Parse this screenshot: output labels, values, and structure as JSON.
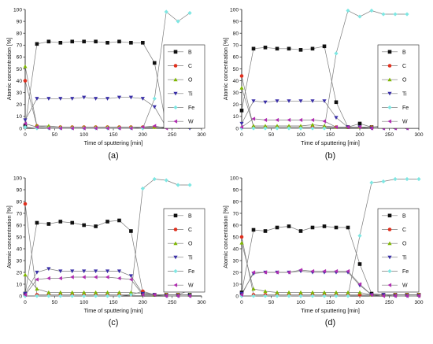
{
  "figure": {
    "colors": {
      "B": "#111111",
      "C": "#e0301e",
      "O": "#7fb800",
      "Ti": "#3a2fa8",
      "Fe": "#7fe7e3",
      "W": "#b02db0",
      "line": "#7a7a7a"
    },
    "markers": {
      "B": "square",
      "C": "circle",
      "O": "triangle-up",
      "Ti": "triangle-down",
      "Fe": "diamond",
      "W": "triangle-left"
    }
  },
  "chart_data": [
    {
      "type": "line",
      "panel_label": "(a)",
      "xlabel": "Time of sputtering [min]",
      "ylabel": "Atomic concentration [%]",
      "xlim": [
        0,
        300
      ],
      "ylim": [
        0,
        100
      ],
      "xticks": [
        "0",
        "50",
        "100",
        "150",
        "200",
        "250",
        "300"
      ],
      "yticks": [
        "0",
        "10",
        "20",
        "30",
        "40",
        "50",
        "60",
        "70",
        "80",
        "90",
        "100"
      ],
      "legend_position": "right",
      "series": [
        {
          "name": "B",
          "x": [
            0,
            20,
            40,
            60,
            80,
            100,
            120,
            140,
            160,
            180,
            200,
            220,
            240,
            260,
            280
          ],
          "values": [
            2,
            71,
            73,
            72,
            73,
            73,
            73,
            72,
            73,
            72,
            72,
            55,
            2,
            6,
            1
          ]
        },
        {
          "name": "C",
          "x": [
            0,
            20,
            40,
            60,
            80,
            100,
            120,
            140,
            160,
            180,
            200,
            220,
            240,
            260,
            280
          ],
          "values": [
            40,
            2,
            1,
            1,
            1,
            1,
            1,
            1,
            1,
            1,
            1,
            1,
            1,
            3,
            1
          ]
        },
        {
          "name": "O",
          "x": [
            0,
            20,
            40,
            60,
            80,
            100,
            120,
            140,
            160,
            180,
            200,
            220,
            240,
            260,
            280
          ],
          "values": [
            52,
            2,
            2,
            1,
            1,
            1,
            1,
            1,
            1,
            1,
            1,
            1,
            1,
            1,
            1
          ]
        },
        {
          "name": "Ti",
          "x": [
            0,
            20,
            40,
            60,
            80,
            100,
            120,
            140,
            160,
            180,
            200,
            220,
            240,
            260,
            280
          ],
          "values": [
            7,
            25,
            25,
            25,
            25,
            26,
            25,
            25,
            26,
            26,
            25,
            18,
            1,
            1,
            0
          ]
        },
        {
          "name": "Fe",
          "x": [
            0,
            20,
            40,
            60,
            80,
            100,
            120,
            140,
            160,
            180,
            200,
            220,
            240,
            260,
            280
          ],
          "values": [
            1,
            0,
            0,
            0,
            0,
            0,
            0,
            0,
            0,
            0,
            0,
            25,
            98,
            90,
            97
          ]
        },
        {
          "name": "W",
          "x": [
            0,
            20,
            40,
            60,
            80,
            100,
            120,
            140,
            160,
            180,
            200,
            220,
            240,
            260,
            280
          ],
          "values": [
            4,
            1,
            0,
            0,
            0,
            0,
            0,
            0,
            0,
            0,
            1,
            2,
            0,
            1,
            2
          ]
        }
      ]
    },
    {
      "type": "line",
      "panel_label": "(b)",
      "xlabel": "Time of sputtering [min]",
      "ylabel": "Atomic concentration [%]",
      "xlim": [
        0,
        300
      ],
      "ylim": [
        0,
        100
      ],
      "xticks": [
        "0",
        "50",
        "100",
        "150",
        "200",
        "250",
        "300"
      ],
      "yticks": [
        "0",
        "10",
        "20",
        "30",
        "40",
        "50",
        "60",
        "70",
        "80",
        "90",
        "100"
      ],
      "legend_position": "right",
      "series": [
        {
          "name": "B",
          "x": [
            0,
            20,
            40,
            60,
            80,
            100,
            120,
            140,
            160,
            180,
            200,
            220,
            240,
            260,
            280
          ],
          "values": [
            15,
            67,
            68,
            67,
            67,
            66,
            67,
            69,
            22,
            1,
            4,
            1,
            2,
            1,
            1
          ]
        },
        {
          "name": "C",
          "x": [
            0,
            20,
            40,
            60,
            80,
            100,
            120,
            140,
            160,
            180,
            200,
            220,
            240,
            260,
            280
          ],
          "values": [
            44,
            1,
            1,
            1,
            1,
            1,
            1,
            1,
            1,
            1,
            1,
            1,
            1,
            1,
            4
          ]
        },
        {
          "name": "O",
          "x": [
            0,
            20,
            40,
            60,
            80,
            100,
            120,
            140,
            160,
            180,
            200,
            220,
            240,
            260,
            280
          ],
          "values": [
            34,
            2,
            2,
            2,
            2,
            2,
            3,
            2,
            1,
            1,
            1,
            1,
            1,
            1,
            1
          ]
        },
        {
          "name": "Ti",
          "x": [
            0,
            20,
            40,
            60,
            80,
            100,
            120,
            140,
            160,
            180,
            200,
            220,
            240,
            260,
            280
          ],
          "values": [
            4,
            23,
            22,
            23,
            23,
            23,
            23,
            23,
            9,
            1,
            1,
            0,
            0,
            0,
            0
          ]
        },
        {
          "name": "Fe",
          "x": [
            0,
            20,
            40,
            60,
            80,
            100,
            120,
            140,
            160,
            180,
            200,
            220,
            240,
            260,
            280
          ],
          "values": [
            0,
            0,
            0,
            0,
            0,
            0,
            0,
            0,
            63,
            99,
            94,
            99,
            96,
            96,
            96
          ]
        },
        {
          "name": "W",
          "x": [
            0,
            20,
            40,
            60,
            80,
            100,
            120,
            140,
            160,
            180,
            200,
            220,
            240,
            260,
            280
          ],
          "values": [
            1,
            8,
            7,
            7,
            7,
            7,
            7,
            6,
            1,
            1,
            1,
            0,
            0,
            0,
            0
          ]
        }
      ]
    },
    {
      "type": "line",
      "panel_label": "(c)",
      "xlabel": "Time of sputtering [min]",
      "ylabel": "Atomic concentration [%]",
      "xlim": [
        0,
        300
      ],
      "ylim": [
        0,
        100
      ],
      "xticks": [
        "0",
        "50",
        "100",
        "150",
        "200",
        "250",
        "300"
      ],
      "yticks": [
        "0",
        "10",
        "20",
        "30",
        "40",
        "50",
        "60",
        "70",
        "80",
        "90",
        "100"
      ],
      "legend_position": "right",
      "series": [
        {
          "name": "B",
          "x": [
            0,
            20,
            40,
            60,
            80,
            100,
            120,
            140,
            160,
            180,
            200,
            220,
            240,
            260,
            280
          ],
          "values": [
            2,
            62,
            61,
            63,
            62,
            60,
            59,
            63,
            64,
            55,
            3,
            1,
            1,
            1,
            1
          ]
        },
        {
          "name": "C",
          "x": [
            0,
            20,
            40,
            60,
            80,
            100,
            120,
            140,
            160,
            180,
            200,
            220,
            240,
            260,
            280
          ],
          "values": [
            78,
            1,
            1,
            1,
            1,
            1,
            1,
            1,
            1,
            1,
            4,
            1,
            1,
            1,
            5
          ]
        },
        {
          "name": "O",
          "x": [
            0,
            20,
            40,
            60,
            80,
            100,
            120,
            140,
            160,
            180,
            200,
            220,
            240,
            260,
            280
          ],
          "values": [
            18,
            6,
            3,
            3,
            3,
            3,
            3,
            3,
            3,
            3,
            2,
            1,
            1,
            1,
            1
          ]
        },
        {
          "name": "Ti",
          "x": [
            0,
            20,
            40,
            60,
            80,
            100,
            120,
            140,
            160,
            180,
            200,
            220,
            240,
            260,
            280
          ],
          "values": [
            2,
            20,
            23,
            21,
            21,
            21,
            21,
            21,
            21,
            17,
            2,
            1,
            0,
            0,
            0
          ]
        },
        {
          "name": "Fe",
          "x": [
            0,
            20,
            40,
            60,
            80,
            100,
            120,
            140,
            160,
            180,
            200,
            220,
            240,
            260,
            280
          ],
          "values": [
            0,
            0,
            0,
            0,
            0,
            0,
            0,
            0,
            0,
            1,
            91,
            99,
            98,
            94,
            94
          ]
        },
        {
          "name": "W",
          "x": [
            0,
            20,
            40,
            60,
            80,
            100,
            120,
            140,
            160,
            180,
            200,
            220,
            240,
            260,
            280
          ],
          "values": [
            1,
            14,
            15,
            15,
            16,
            16,
            16,
            16,
            15,
            14,
            1,
            1,
            0,
            0,
            0
          ]
        }
      ]
    },
    {
      "type": "line",
      "panel_label": "(d)",
      "xlabel": "Time of sputtering [min]",
      "ylabel": "Atomic concentration [%]",
      "xlim": [
        0,
        300
      ],
      "ylim": [
        0,
        100
      ],
      "xticks": [
        "0",
        "50",
        "100",
        "150",
        "200",
        "250",
        "300"
      ],
      "yticks": [
        "0",
        "10",
        "20",
        "30",
        "40",
        "50",
        "60",
        "70",
        "80",
        "90",
        "100"
      ],
      "legend_position": "right",
      "series": [
        {
          "name": "B",
          "x": [
            0,
            20,
            40,
            60,
            80,
            100,
            120,
            140,
            160,
            180,
            200,
            220,
            240,
            260,
            280,
            300
          ],
          "values": [
            3,
            56,
            55,
            58,
            59,
            55,
            58,
            59,
            58,
            58,
            27,
            2,
            1,
            1,
            1,
            1
          ]
        },
        {
          "name": "C",
          "x": [
            0,
            20,
            40,
            60,
            80,
            100,
            120,
            140,
            160,
            180,
            200,
            220,
            240,
            260,
            280,
            300
          ],
          "values": [
            50,
            1,
            1,
            1,
            1,
            1,
            1,
            1,
            1,
            1,
            1,
            1,
            1,
            1,
            1,
            1
          ]
        },
        {
          "name": "O",
          "x": [
            0,
            20,
            40,
            60,
            80,
            100,
            120,
            140,
            160,
            180,
            200,
            220,
            240,
            260,
            280,
            300
          ],
          "values": [
            45,
            6,
            4,
            3,
            3,
            3,
            3,
            3,
            3,
            3,
            3,
            1,
            1,
            1,
            1,
            1
          ]
        },
        {
          "name": "Ti",
          "x": [
            0,
            20,
            40,
            60,
            80,
            100,
            120,
            140,
            160,
            180,
            200,
            220,
            240,
            260,
            280,
            300
          ],
          "values": [
            2,
            19,
            20,
            20,
            20,
            21,
            20,
            20,
            20,
            20,
            9,
            1,
            1,
            0,
            0,
            0
          ]
        },
        {
          "name": "Fe",
          "x": [
            0,
            20,
            40,
            60,
            80,
            100,
            120,
            140,
            160,
            180,
            200,
            220,
            240,
            260,
            280,
            300
          ],
          "values": [
            0,
            0,
            0,
            0,
            0,
            0,
            0,
            0,
            0,
            0,
            51,
            96,
            97,
            99,
            99,
            99
          ]
        },
        {
          "name": "W",
          "x": [
            0,
            20,
            40,
            60,
            80,
            100,
            120,
            140,
            160,
            180,
            200,
            220,
            240,
            260,
            280,
            300
          ],
          "values": [
            1,
            20,
            20,
            20,
            20,
            22,
            21,
            21,
            21,
            21,
            10,
            1,
            0,
            0,
            0,
            0
          ]
        }
      ]
    }
  ]
}
